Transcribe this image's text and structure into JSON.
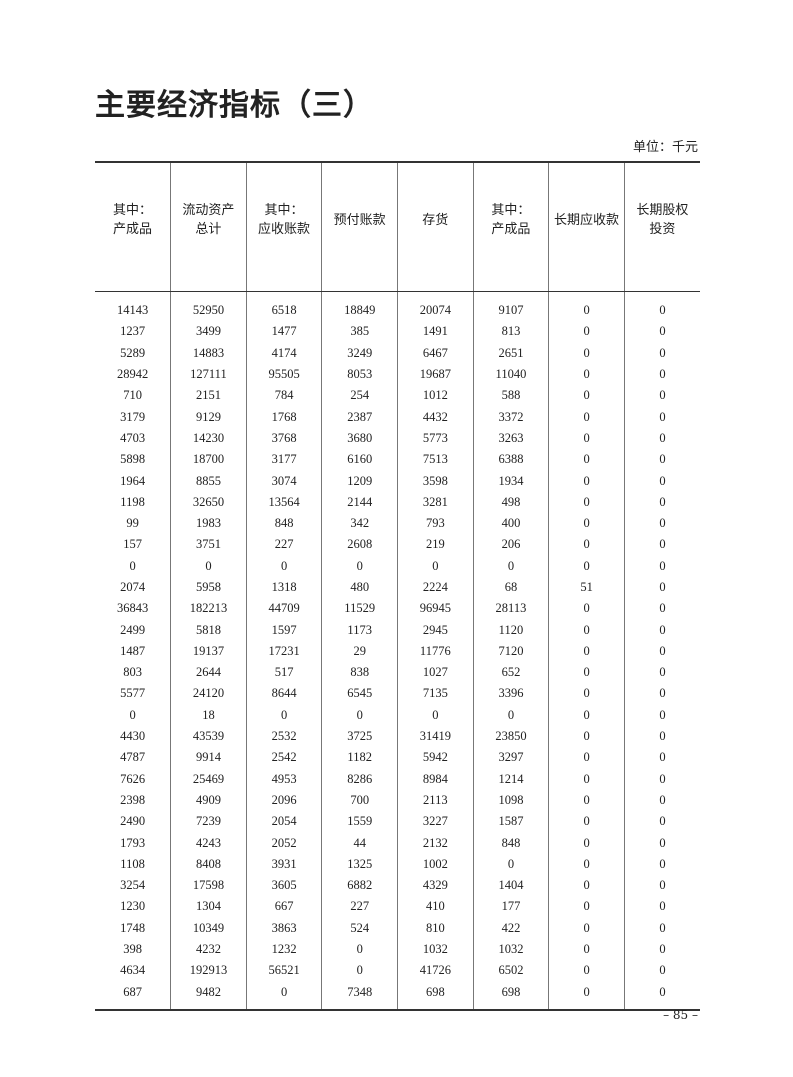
{
  "title": "主要经济指标（三）",
  "unit": "单位：千元",
  "columns": [
    [
      "其中：",
      "产成品"
    ],
    [
      "流动资产",
      "总计"
    ],
    [
      "其中：",
      "应收账款"
    ],
    [
      "预付账款"
    ],
    [
      "存货"
    ],
    [
      "其中：",
      "产成品"
    ],
    [
      "长期应收款"
    ],
    [
      "长期股权",
      "投资"
    ]
  ],
  "rows": [
    [
      "14143",
      "52950",
      "6518",
      "18849",
      "20074",
      "9107",
      "0",
      "0"
    ],
    [
      "1237",
      "3499",
      "1477",
      "385",
      "1491",
      "813",
      "0",
      "0"
    ],
    [
      "5289",
      "14883",
      "4174",
      "3249",
      "6467",
      "2651",
      "0",
      "0"
    ],
    [
      "28942",
      "127111",
      "95505",
      "8053",
      "19687",
      "11040",
      "0",
      "0"
    ],
    [
      "710",
      "2151",
      "784",
      "254",
      "1012",
      "588",
      "0",
      "0"
    ],
    [
      "3179",
      "9129",
      "1768",
      "2387",
      "4432",
      "3372",
      "0",
      "0"
    ],
    [
      "4703",
      "14230",
      "3768",
      "3680",
      "5773",
      "3263",
      "0",
      "0"
    ],
    [
      "5898",
      "18700",
      "3177",
      "6160",
      "7513",
      "6388",
      "0",
      "0"
    ],
    [
      "1964",
      "8855",
      "3074",
      "1209",
      "3598",
      "1934",
      "0",
      "0"
    ],
    [
      "1198",
      "32650",
      "13564",
      "2144",
      "3281",
      "498",
      "0",
      "0"
    ],
    [
      "99",
      "1983",
      "848",
      "342",
      "793",
      "400",
      "0",
      "0"
    ],
    [
      "157",
      "3751",
      "227",
      "2608",
      "219",
      "206",
      "0",
      "0"
    ],
    [
      "0",
      "0",
      "0",
      "0",
      "0",
      "0",
      "0",
      "0"
    ],
    [
      "2074",
      "5958",
      "1318",
      "480",
      "2224",
      "68",
      "51",
      "0"
    ],
    [
      "36843",
      "182213",
      "44709",
      "11529",
      "96945",
      "28113",
      "0",
      "0"
    ],
    [
      "2499",
      "5818",
      "1597",
      "1173",
      "2945",
      "1120",
      "0",
      "0"
    ],
    [
      "1487",
      "19137",
      "17231",
      "29",
      "11776",
      "7120",
      "0",
      "0"
    ],
    [
      "803",
      "2644",
      "517",
      "838",
      "1027",
      "652",
      "0",
      "0"
    ],
    [
      "5577",
      "24120",
      "8644",
      "6545",
      "7135",
      "3396",
      "0",
      "0"
    ],
    [
      "0",
      "18",
      "0",
      "0",
      "0",
      "0",
      "0",
      "0"
    ],
    [
      "4430",
      "43539",
      "2532",
      "3725",
      "31419",
      "23850",
      "0",
      "0"
    ],
    [
      "4787",
      "9914",
      "2542",
      "1182",
      "5942",
      "3297",
      "0",
      "0"
    ],
    [
      "7626",
      "25469",
      "4953",
      "8286",
      "8984",
      "1214",
      "0",
      "0"
    ],
    [
      "2398",
      "4909",
      "2096",
      "700",
      "2113",
      "1098",
      "0",
      "0"
    ],
    [
      "2490",
      "7239",
      "2054",
      "1559",
      "3227",
      "1587",
      "0",
      "0"
    ],
    [
      "1793",
      "4243",
      "2052",
      "44",
      "2132",
      "848",
      "0",
      "0"
    ],
    [
      "1108",
      "8408",
      "3931",
      "1325",
      "1002",
      "0",
      "0",
      "0"
    ],
    [
      "3254",
      "17598",
      "3605",
      "6882",
      "4329",
      "1404",
      "0",
      "0"
    ],
    [
      "1230",
      "1304",
      "667",
      "227",
      "410",
      "177",
      "0",
      "0"
    ],
    [
      "1748",
      "10349",
      "3863",
      "524",
      "810",
      "422",
      "0",
      "0"
    ],
    [
      "398",
      "4232",
      "1232",
      "0",
      "1032",
      "1032",
      "0",
      "0"
    ],
    [
      "4634",
      "192913",
      "56521",
      "0",
      "41726",
      "6502",
      "0",
      "0"
    ],
    [
      "687",
      "9482",
      "0",
      "7348",
      "698",
      "698",
      "0",
      "0"
    ]
  ],
  "page_number": "– 85 –"
}
